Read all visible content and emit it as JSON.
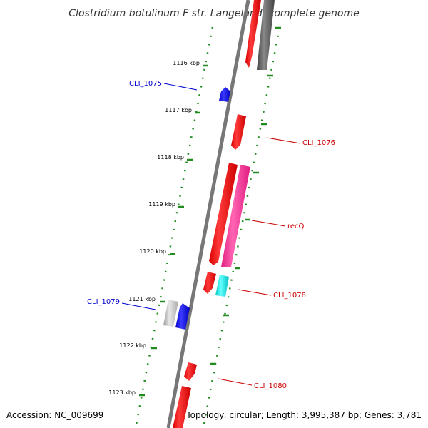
{
  "title": "Clostridium botulinum F str. Langeland, complete genome",
  "footer": {
    "accession": "Accession: NC_009699",
    "topology": "Topology: circular; Length: 3,995,387 bp; Genes: 3,781"
  },
  "ticks": [
    "1116 kbp",
    "1117 kbp",
    "1118 kbp",
    "1119 kbp",
    "1120 kbp",
    "1121 kbp",
    "1122 kbp",
    "1123 kbp"
  ],
  "labels": {
    "cli_1075": "CLI_1075",
    "cli_1076": "CLI_1076",
    "recq": "recQ",
    "cli_1078": "CLI_1078",
    "cli_1079": "CLI_1079",
    "cli_1080": "CLI_1080"
  },
  "colors": {
    "forward_gene": "#ff0000",
    "reverse_gene": "#0000ff",
    "pink_feature": "#ff3399",
    "cyan_feature": "#00e5e5",
    "grey_feature": "#555555",
    "light_feature": "#bbbbbb",
    "backbone": "#777777",
    "ruler": "#228b22"
  }
}
